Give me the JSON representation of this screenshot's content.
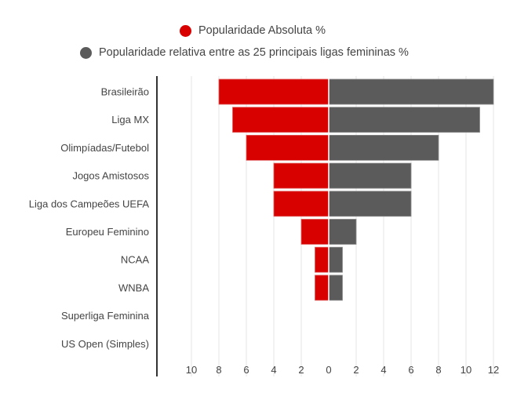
{
  "chart_data": {
    "type": "bar",
    "orientation": "horizontal",
    "layout": "diverging",
    "title": "",
    "xlabel": "",
    "ylabel": "",
    "categories": [
      "Brasileirão",
      "Liga MX",
      "Olimpíadas/Futebol",
      "Jogos Amistosos",
      "Liga dos Campeões UEFA",
      "Europeu Feminino",
      "NCAA",
      "WNBA",
      "Superliga Feminina",
      "US Open (Simples)"
    ],
    "series": [
      {
        "name": "Popularidade Absoluta %",
        "color": "#d90000",
        "side": "left",
        "values": [
          8,
          7,
          6,
          4,
          4,
          2,
          1,
          1,
          0,
          0
        ]
      },
      {
        "name": "Popularidade relativa entre as 25 principais ligas femininas %",
        "color": "#5b5b5b",
        "side": "right",
        "values": [
          12,
          11,
          8,
          6,
          6,
          2,
          1,
          1,
          0,
          0
        ]
      }
    ],
    "xlim": [
      -12,
      12
    ],
    "x_ticks": [
      -10,
      -8,
      -6,
      -4,
      -2,
      0,
      2,
      4,
      6,
      8,
      10,
      12
    ],
    "x_tick_labels": [
      "10",
      "8",
      "6",
      "4",
      "2",
      "0",
      "2",
      "4",
      "6",
      "8",
      "10",
      "12"
    ],
    "grid": true,
    "legend_position": "top"
  }
}
